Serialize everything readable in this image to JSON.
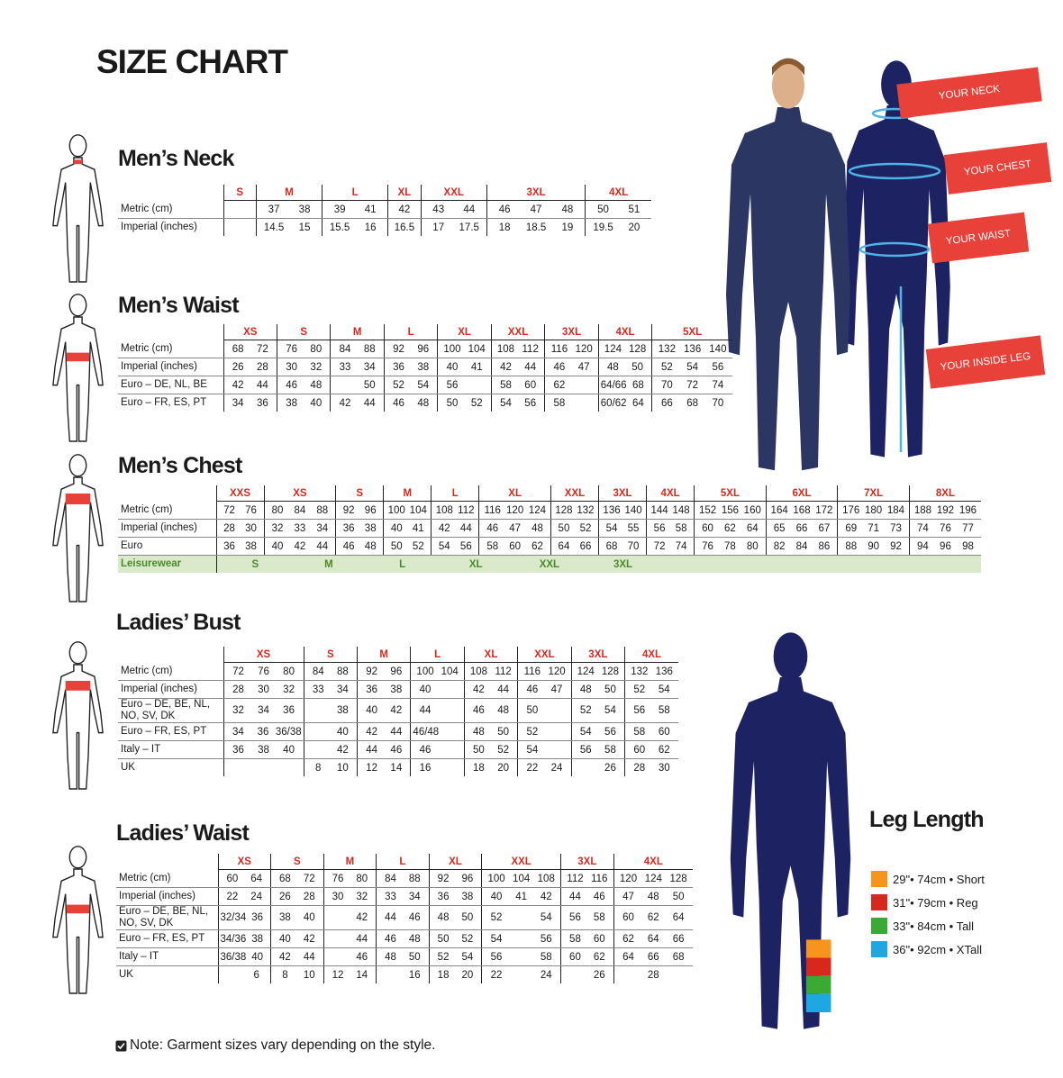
{
  "title": "SIZE CHART",
  "tables": [
    {
      "title": "Men’s Neck",
      "sizes": [
        "S",
        "M",
        "L",
        "XL",
        "XXL",
        "3XL",
        "4XL"
      ],
      "rows": [
        {
          "label": "Metric (cm)",
          "cells": [
            [],
            [
              "37",
              "38"
            ],
            [
              "39",
              "41"
            ],
            [
              "42"
            ],
            [
              "43",
              "44"
            ],
            [
              "46",
              "47",
              "48"
            ],
            [
              "50",
              "51"
            ]
          ]
        },
        {
          "label": "Imperial (inches)",
          "cells": [
            [],
            [
              "14.5",
              "15"
            ],
            [
              "15.5",
              "16"
            ],
            [
              "16.5"
            ],
            [
              "17",
              "17.5"
            ],
            [
              "18",
              "18.5",
              "19"
            ],
            [
              "19.5",
              "20"
            ]
          ]
        }
      ]
    },
    {
      "title": "Men’s Waist",
      "sizes": [
        "XS",
        "S",
        "M",
        "L",
        "XL",
        "XXL",
        "3XL",
        "4XL",
        "5XL"
      ],
      "rows": [
        {
          "label": "Metric (cm)",
          "cells": [
            [
              "68",
              "72"
            ],
            [
              "76",
              "80"
            ],
            [
              "84",
              "88"
            ],
            [
              "92",
              "96"
            ],
            [
              "100",
              "104"
            ],
            [
              "108",
              "112"
            ],
            [
              "116",
              "120"
            ],
            [
              "124",
              "128"
            ],
            [
              "132",
              "136",
              "140"
            ]
          ]
        },
        {
          "label": "Imperial (inches)",
          "cells": [
            [
              "26",
              "28"
            ],
            [
              "30",
              "32"
            ],
            [
              "33",
              "34"
            ],
            [
              "36",
              "38"
            ],
            [
              "40",
              "41"
            ],
            [
              "42",
              "44"
            ],
            [
              "46",
              "47"
            ],
            [
              "48",
              "50"
            ],
            [
              "52",
              "54",
              "56"
            ]
          ]
        },
        {
          "label": "Euro – DE, NL, BE",
          "cells": [
            [
              "42",
              "44"
            ],
            [
              "46",
              "48"
            ],
            [
              null,
              "50"
            ],
            [
              "52",
              "54"
            ],
            [
              "56",
              null
            ],
            [
              "58",
              "60"
            ],
            [
              "62",
              null
            ],
            [
              "64/66",
              "68"
            ],
            [
              "70",
              "72",
              "74"
            ]
          ]
        },
        {
          "label": "Euro – FR, ES, PT",
          "cells": [
            [
              "34",
              "36"
            ],
            [
              "38",
              "40"
            ],
            [
              "42",
              "44"
            ],
            [
              "46",
              "48"
            ],
            [
              "50",
              "52"
            ],
            [
              "54",
              "56"
            ],
            [
              "58",
              null
            ],
            [
              "60/62",
              "64"
            ],
            [
              "66",
              "68",
              "70"
            ]
          ]
        }
      ]
    },
    {
      "title": "Men’s Chest",
      "sizes": [
        "XXS",
        "XS",
        "S",
        "M",
        "L",
        "XL",
        "XXL",
        "3XL",
        "4XL",
        "5XL",
        "6XL",
        "7XL",
        "8XL"
      ],
      "rows": [
        {
          "label": "Metric (cm)",
          "cells": [
            [
              "72",
              "76"
            ],
            [
              "80",
              "84",
              "88"
            ],
            [
              "92",
              "96"
            ],
            [
              "100",
              "104"
            ],
            [
              "108",
              "112"
            ],
            [
              "116",
              "120",
              "124"
            ],
            [
              "128",
              "132"
            ],
            [
              "136",
              "140"
            ],
            [
              "144",
              "148"
            ],
            [
              "152",
              "156",
              "160"
            ],
            [
              "164",
              "168",
              "172"
            ],
            [
              "176",
              "180",
              "184"
            ],
            [
              "188",
              "192",
              "196"
            ]
          ]
        },
        {
          "label": "Imperial (inches)",
          "cells": [
            [
              "28",
              "30"
            ],
            [
              "32",
              "33",
              "34"
            ],
            [
              "36",
              "38"
            ],
            [
              "40",
              "41"
            ],
            [
              "42",
              "44"
            ],
            [
              "46",
              "47",
              "48"
            ],
            [
              "50",
              "52"
            ],
            [
              "54",
              "55"
            ],
            [
              "56",
              "58"
            ],
            [
              "60",
              "62",
              "64"
            ],
            [
              "65",
              "66",
              "67"
            ],
            [
              "69",
              "71",
              "73"
            ],
            [
              "74",
              "76",
              "77"
            ]
          ]
        },
        {
          "label": "Euro",
          "cells": [
            [
              "36",
              "38"
            ],
            [
              "40",
              "42",
              "44"
            ],
            [
              "46",
              "48"
            ],
            [
              "50",
              "52"
            ],
            [
              "54",
              "56"
            ],
            [
              "58",
              "60",
              "62"
            ],
            [
              "64",
              "66"
            ],
            [
              "68",
              "70"
            ],
            [
              "72",
              "74"
            ],
            [
              "76",
              "78",
              "80"
            ],
            [
              "82",
              "84",
              "86"
            ],
            [
              "88",
              "90",
              "92"
            ],
            [
              "94",
              "96",
              "98"
            ]
          ]
        }
      ],
      "leisurewear": {
        "label": "Leisurewear",
        "sizes": [
          "S",
          "M",
          "L",
          "XL",
          "XXL",
          "3XL"
        ]
      }
    },
    {
      "title": "Ladies’ Bust",
      "sizes": [
        "XS",
        "S",
        "M",
        "L",
        "XL",
        "XXL",
        "3XL",
        "4XL"
      ],
      "rows": [
        {
          "label": "Metric (cm)",
          "cells": [
            [
              "72",
              "76",
              "80"
            ],
            [
              "84",
              "88"
            ],
            [
              "92",
              "96"
            ],
            [
              "100",
              "104"
            ],
            [
              "108",
              "112"
            ],
            [
              "116",
              "120"
            ],
            [
              "124",
              "128"
            ],
            [
              "132",
              "136"
            ]
          ]
        },
        {
          "label": "Imperial (inches)",
          "cells": [
            [
              "28",
              "30",
              "32"
            ],
            [
              "33",
              "34"
            ],
            [
              "36",
              "38"
            ],
            [
              "40",
              null
            ],
            [
              "42",
              "44"
            ],
            [
              "46",
              "47"
            ],
            [
              "48",
              "50"
            ],
            [
              "52",
              "54"
            ]
          ]
        },
        {
          "label": "Euro – DE, BE, NL, NO, SV, DK",
          "cells": [
            [
              "32",
              "34",
              "36"
            ],
            [
              null,
              "38"
            ],
            [
              "40",
              "42"
            ],
            [
              "44",
              null
            ],
            [
              "46",
              "48"
            ],
            [
              "50",
              null
            ],
            [
              "52",
              "54"
            ],
            [
              "56",
              "58"
            ]
          ]
        },
        {
          "label": "Euro – FR, ES, PT",
          "cells": [
            [
              "34",
              "36",
              "36/38"
            ],
            [
              null,
              "40"
            ],
            [
              "42",
              "44"
            ],
            [
              "46/48",
              null
            ],
            [
              "48",
              "50"
            ],
            [
              "52",
              null
            ],
            [
              "54",
              "56"
            ],
            [
              "58",
              "60"
            ]
          ]
        },
        {
          "label": "Italy – IT",
          "cells": [
            [
              "36",
              "38",
              "40"
            ],
            [
              null,
              "42"
            ],
            [
              "44",
              "46"
            ],
            [
              "46",
              null
            ],
            [
              "50",
              "52"
            ],
            [
              "54",
              null
            ],
            [
              "56",
              "58"
            ],
            [
              "60",
              "62"
            ]
          ]
        },
        {
          "label": "UK",
          "cells": [
            [
              null,
              null,
              null
            ],
            [
              "8",
              "10"
            ],
            [
              "12",
              "14"
            ],
            [
              "16",
              null
            ],
            [
              "18",
              "20"
            ],
            [
              "22",
              "24"
            ],
            [
              null,
              "26"
            ],
            [
              "28",
              "30"
            ]
          ]
        }
      ]
    },
    {
      "title": "Ladies’ Waist",
      "sizes": [
        "XS",
        "S",
        "M",
        "L",
        "XL",
        "XXL",
        "3XL",
        "4XL"
      ],
      "rows": [
        {
          "label": "Metric (cm)",
          "cells": [
            [
              "60",
              "64"
            ],
            [
              "68",
              "72"
            ],
            [
              "76",
              "80"
            ],
            [
              "84",
              "88"
            ],
            [
              "92",
              "96"
            ],
            [
              "100",
              "104",
              "108"
            ],
            [
              "112",
              "116"
            ],
            [
              "120",
              "124",
              "128"
            ]
          ]
        },
        {
          "label": "Imperial (inches)",
          "cells": [
            [
              "22",
              "24"
            ],
            [
              "26",
              "28"
            ],
            [
              "30",
              "32"
            ],
            [
              "33",
              "34"
            ],
            [
              "36",
              "38"
            ],
            [
              "40",
              "41",
              "42"
            ],
            [
              "44",
              "46"
            ],
            [
              "47",
              "48",
              "50"
            ]
          ]
        },
        {
          "label": "Euro – DE, BE, NL, NO, SV, DK",
          "cells": [
            [
              "32/34",
              "36"
            ],
            [
              "38",
              "40"
            ],
            [
              null,
              "42"
            ],
            [
              "44",
              "46"
            ],
            [
              "48",
              "50"
            ],
            [
              "52",
              null,
              "54"
            ],
            [
              "56",
              "58"
            ],
            [
              "60",
              "62",
              "64"
            ]
          ]
        },
        {
          "label": "Euro – FR, ES, PT",
          "cells": [
            [
              "34/36",
              "38"
            ],
            [
              "40",
              "42"
            ],
            [
              null,
              "44"
            ],
            [
              "46",
              "48"
            ],
            [
              "50",
              "52"
            ],
            [
              "54",
              null,
              "56"
            ],
            [
              "58",
              "60"
            ],
            [
              "62",
              "64",
              "66"
            ]
          ]
        },
        {
          "label": "Italy – IT",
          "cells": [
            [
              "36/38",
              "40"
            ],
            [
              "42",
              "44"
            ],
            [
              null,
              "46"
            ],
            [
              "48",
              "50"
            ],
            [
              "52",
              "54"
            ],
            [
              "56",
              null,
              "58"
            ],
            [
              "60",
              "62"
            ],
            [
              "64",
              "66",
              "68"
            ]
          ]
        },
        {
          "label": "UK",
          "cells": [
            [
              null,
              "6"
            ],
            [
              "8",
              "10"
            ],
            [
              "12",
              "14"
            ],
            [
              null,
              "16"
            ],
            [
              "18",
              "20"
            ],
            [
              "22",
              null,
              "24"
            ],
            [
              null,
              "26"
            ],
            [
              null,
              "28",
              null
            ]
          ]
        }
      ]
    }
  ],
  "callouts": [
    "YOUR NECK",
    "YOUR CHEST",
    "YOUR WAIST",
    "YOUR INSIDE LEG"
  ],
  "leg_length": {
    "title": "Leg Length",
    "items": [
      {
        "text": "29\"• 74cm • Short",
        "color": "#f7941d"
      },
      {
        "text": "31\"• 79cm • Reg",
        "color": "#d8281e"
      },
      {
        "text": "33\"• 84cm • Tall",
        "color": "#3aaa35"
      },
      {
        "text": "36\"• 92cm • XTall",
        "color": "#1ea7e1"
      }
    ]
  },
  "note": "Note: Garment sizes vary depending on the style."
}
